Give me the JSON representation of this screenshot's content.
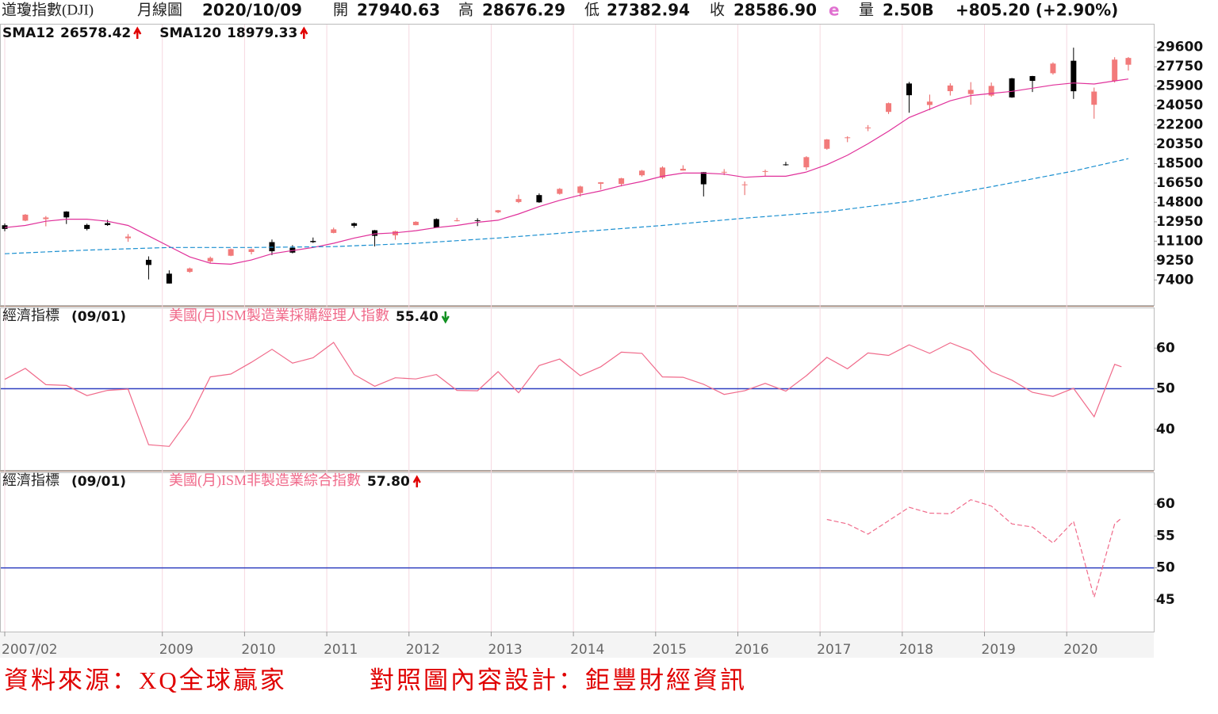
{
  "header": {
    "name": "道瓊指數(DJI)",
    "period": "月線圖",
    "date": "2020/10/09",
    "open_label": "開",
    "open": "27940.63",
    "high_label": "高",
    "high": "28676.29",
    "low_label": "低",
    "low": "27382.94",
    "close_label": "收",
    "close": "28586.90",
    "estimate": "e",
    "volume_label": "量",
    "volume": "2.50B",
    "change": "+805.20 (+2.90%)"
  },
  "chart_data": [
    {
      "type": "candlestick",
      "up_color": "#f27a7a",
      "down_color": "#000000",
      "x": [
        "2007/02",
        "2007/05",
        "2007/08",
        "2007/11",
        "2008/02",
        "2008/05",
        "2008/08",
        "2008/11",
        "2009/02",
        "2009/05",
        "2009/08",
        "2009/11",
        "2010/02",
        "2010/05",
        "2010/08",
        "2010/11",
        "2011/02",
        "2011/05",
        "2011/08",
        "2011/11",
        "2012/02",
        "2012/05",
        "2012/08",
        "2012/11",
        "2013/02",
        "2013/05",
        "2013/08",
        "2013/11",
        "2014/02",
        "2014/05",
        "2014/08",
        "2014/11",
        "2015/02",
        "2015/05",
        "2015/08",
        "2015/11",
        "2016/02",
        "2016/05",
        "2016/08",
        "2016/11",
        "2017/02",
        "2017/05",
        "2017/08",
        "2017/11",
        "2018/02",
        "2018/05",
        "2018/08",
        "2018/11",
        "2019/02",
        "2019/05",
        "2019/08",
        "2019/11",
        "2020/02",
        "2020/05",
        "2020/08",
        "2020/10"
      ],
      "open": [
        12620,
        13060,
        13210,
        13930,
        12650,
        12820,
        11380,
        9320,
        8000,
        8170,
        9170,
        9710,
        10070,
        11010,
        10470,
        11120,
        11890,
        12810,
        12140,
        11660,
        12630,
        13210,
        13010,
        13100,
        13860,
        14840,
        15500,
        15620,
        15700,
        16580,
        16560,
        17390,
        17160,
        17840,
        17690,
        17660,
        16450,
        17770,
        18430,
        18150,
        19920,
        20940,
        21900,
        23440,
        26150,
        24100,
        25420,
        25150,
        25000,
        26640,
        26860,
        27130,
        28320,
        24120,
        26390,
        27940.63
      ],
      "high": [
        12790,
        13690,
        13500,
        13960,
        12770,
        13140,
        11780,
        9650,
        8320,
        8580,
        9630,
        10400,
        10400,
        11260,
        10720,
        11450,
        12390,
        12880,
        12170,
        12100,
        13000,
        13280,
        13330,
        13290,
        14080,
        15540,
        15660,
        16170,
        16400,
        16740,
        17150,
        17900,
        18240,
        18350,
        17700,
        17980,
        16800,
        17930,
        18670,
        19210,
        20850,
        21110,
        22180,
        24330,
        26300,
        25090,
        26170,
        26280,
        26240,
        26680,
        26880,
        28170,
        29570,
        25760,
        28660,
        28676.29
      ],
      "low": [
        12050,
        13010,
        12520,
        12740,
        12130,
        12560,
        11040,
        7450,
        7060,
        8080,
        9040,
        9670,
        9840,
        9770,
        9940,
        10930,
        11850,
        12380,
        10600,
        11230,
        12620,
        12390,
        12990,
        12540,
        13780,
        14740,
        14760,
        15540,
        15340,
        16020,
        16330,
        17270,
        17040,
        17840,
        15370,
        17400,
        15500,
        17330,
        18300,
        17880,
        19830,
        20550,
        21600,
        23240,
        23360,
        23600,
        25000,
        24120,
        24880,
        24780,
        25340,
        27000,
        24680,
        22790,
        26240,
        27382.94
      ],
      "close": [
        12270,
        13630,
        13360,
        13370,
        12270,
        12640,
        11540,
        8830,
        7060,
        8500,
        9500,
        10340,
        10330,
        10140,
        10010,
        11010,
        12230,
        12570,
        11610,
        12050,
        12950,
        12390,
        13090,
        13030,
        14050,
        15120,
        14810,
        16090,
        16320,
        16720,
        17100,
        17830,
        18130,
        18010,
        16530,
        17720,
        16520,
        17790,
        18400,
        19120,
        20810,
        21010,
        21950,
        24270,
        25030,
        24420,
        25960,
        25540,
        25920,
        24820,
        26400,
        28050,
        25410,
        25380,
        28430,
        28586.9
      ],
      "lines": [
        {
          "name": "SMA12",
          "legend_value": "26578.42",
          "color": "#e0309a",
          "dash": false,
          "x": [
            "2007/02",
            "2007/05",
            "2007/08",
            "2007/11",
            "2008/02",
            "2008/05",
            "2008/08",
            "2008/11",
            "2009/02",
            "2009/05",
            "2009/08",
            "2009/11",
            "2010/02",
            "2010/05",
            "2010/08",
            "2010/11",
            "2011/02",
            "2011/05",
            "2011/08",
            "2011/11",
            "2012/02",
            "2012/05",
            "2012/08",
            "2012/11",
            "2013/02",
            "2013/05",
            "2013/08",
            "2013/11",
            "2014/02",
            "2014/05",
            "2014/08",
            "2014/11",
            "2015/02",
            "2015/05",
            "2015/08",
            "2015/11",
            "2016/02",
            "2016/05",
            "2016/08",
            "2016/11",
            "2017/02",
            "2017/05",
            "2017/08",
            "2017/11",
            "2018/02",
            "2018/05",
            "2018/08",
            "2018/11",
            "2019/02",
            "2019/05",
            "2019/08",
            "2019/11",
            "2020/02",
            "2020/05",
            "2020/08",
            "2020/10"
          ],
          "values": [
            12400,
            12600,
            13000,
            13200,
            13200,
            13000,
            12600,
            11600,
            10600,
            9600,
            9000,
            8900,
            9300,
            9900,
            10200,
            10500,
            10900,
            11400,
            11800,
            11900,
            12100,
            12400,
            12600,
            12900,
            13100,
            13700,
            14400,
            15000,
            15500,
            15900,
            16400,
            16800,
            17300,
            17600,
            17600,
            17500,
            17200,
            17300,
            17300,
            17700,
            18400,
            19300,
            20400,
            21600,
            22900,
            23700,
            24500,
            25000,
            25200,
            25400,
            25700,
            26000,
            26200,
            26100,
            26400,
            26578.42
          ]
        },
        {
          "name": "SMA120",
          "legend_value": "18979.33",
          "color": "#1a8fd0",
          "dash": true,
          "x": [
            "2007/02",
            "2008/02",
            "2009/02",
            "2010/02",
            "2011/02",
            "2012/02",
            "2013/02",
            "2014/02",
            "2015/02",
            "2016/02",
            "2017/02",
            "2018/02",
            "2019/02",
            "2020/02",
            "2020/10"
          ],
          "values": [
            9900,
            10250,
            10500,
            10500,
            10580,
            10900,
            11400,
            12000,
            12600,
            13300,
            13900,
            14900,
            16300,
            17800,
            18979.33
          ]
        }
      ],
      "ylim": [
        5000,
        31850
      ],
      "yticks": [
        29600,
        27750,
        25900,
        24050,
        22200,
        20350,
        18500,
        16650,
        14800,
        12950,
        11100,
        9250,
        7400
      ],
      "xticks": [
        "2007/02",
        "2009",
        "2010",
        "2011",
        "2012",
        "2013",
        "2014",
        "2015",
        "2016",
        "2017",
        "2018",
        "2019",
        "2020"
      ]
    },
    {
      "type": "line",
      "group": "經濟指標",
      "date": "(09/01)",
      "name": "美國(月)ISM製造業採購經理人指數",
      "legend_value": "55.40",
      "color": "#f06a8a",
      "dash": false,
      "ref": 50,
      "ref_color": "#3040c0",
      "x": [
        "2007/02",
        "2007/05",
        "2007/08",
        "2007/11",
        "2008/02",
        "2008/05",
        "2008/08",
        "2008/11",
        "2009/02",
        "2009/05",
        "2009/08",
        "2009/11",
        "2010/02",
        "2010/05",
        "2010/08",
        "2010/11",
        "2011/02",
        "2011/05",
        "2011/08",
        "2011/11",
        "2012/02",
        "2012/05",
        "2012/08",
        "2012/11",
        "2013/02",
        "2013/05",
        "2013/08",
        "2013/11",
        "2014/02",
        "2014/05",
        "2014/08",
        "2014/11",
        "2015/02",
        "2015/05",
        "2015/08",
        "2015/11",
        "2016/02",
        "2016/05",
        "2016/08",
        "2016/11",
        "2017/02",
        "2017/05",
        "2017/08",
        "2017/11",
        "2018/02",
        "2018/05",
        "2018/08",
        "2018/11",
        "2019/02",
        "2019/05",
        "2019/08",
        "2019/11",
        "2020/02",
        "2020/05",
        "2020/08",
        "2020/09"
      ],
      "values": [
        52.3,
        55,
        51,
        50.8,
        48.3,
        49.6,
        49.9,
        36.2,
        35.8,
        42.8,
        52.9,
        53.6,
        56.5,
        59.7,
        56.3,
        57.6,
        61.4,
        53.5,
        50.6,
        52.7,
        52.4,
        53.5,
        49.6,
        49.5,
        54.2,
        49,
        55.7,
        57.3,
        53.2,
        55.4,
        59,
        58.7,
        52.9,
        52.8,
        51.1,
        48.6,
        49.5,
        51.3,
        49.4,
        53.2,
        57.7,
        54.9,
        58.8,
        58.2,
        60.8,
        58.7,
        61.3,
        59.3,
        54.2,
        52.1,
        49.1,
        48.1,
        50.1,
        43.1,
        56,
        55.4
      ],
      "ylim": [
        30,
        70
      ],
      "yticks": [
        60,
        50,
        40
      ]
    },
    {
      "type": "line",
      "group": "經濟指標",
      "date": "(09/01)",
      "name": "美國(月)ISM非製造業綜合指數",
      "legend_value": "57.80",
      "color": "#f06a8a",
      "dash": true,
      "ref": 50,
      "ref_color": "#3040c0",
      "x": [
        "2007/02",
        "2007/05",
        "2007/08",
        "2007/11",
        "2008/02",
        "2008/05",
        "2008/08",
        "2008/11",
        "2009/02",
        "2009/05",
        "2009/08",
        "2009/11",
        "2010/02",
        "2010/05",
        "2010/08",
        "2010/11",
        "2011/02",
        "2011/05",
        "2011/08",
        "2011/11",
        "2012/02",
        "2012/05",
        "2012/08",
        "2012/11",
        "2013/02",
        "2013/05",
        "2013/08",
        "2013/11",
        "2014/02",
        "2014/05",
        "2014/08",
        "2014/11",
        "2015/02",
        "2015/05",
        "2015/08",
        "2015/11",
        "2016/02",
        "2016/05",
        "2016/08",
        "2016/11",
        "2017/02",
        "2017/05",
        "2017/08",
        "2017/11",
        "2018/02",
        "2018/05",
        "2018/08",
        "2018/11",
        "2019/02",
        "2019/05",
        "2019/08",
        "2019/11",
        "2020/02",
        "2020/05",
        "2020/08",
        "2020/09"
      ],
      "values": [
        null,
        null,
        null,
        null,
        null,
        null,
        null,
        null,
        null,
        null,
        null,
        null,
        null,
        null,
        null,
        null,
        null,
        null,
        null,
        null,
        null,
        null,
        null,
        null,
        null,
        null,
        null,
        null,
        null,
        null,
        null,
        null,
        null,
        null,
        null,
        null,
        null,
        null,
        null,
        null,
        57.6,
        56.9,
        55.3,
        57.4,
        59.5,
        58.6,
        58.5,
        60.7,
        59.7,
        56.9,
        56.4,
        53.9,
        57.3,
        45.4,
        56.9,
        57.8
      ],
      "ylim": [
        40,
        65
      ],
      "yticks": [
        60,
        55,
        50,
        45
      ]
    }
  ],
  "footer": {
    "source": "資料來源：XQ全球贏家",
    "design": "對照圖內容設計：鉅豐財經資訊"
  }
}
